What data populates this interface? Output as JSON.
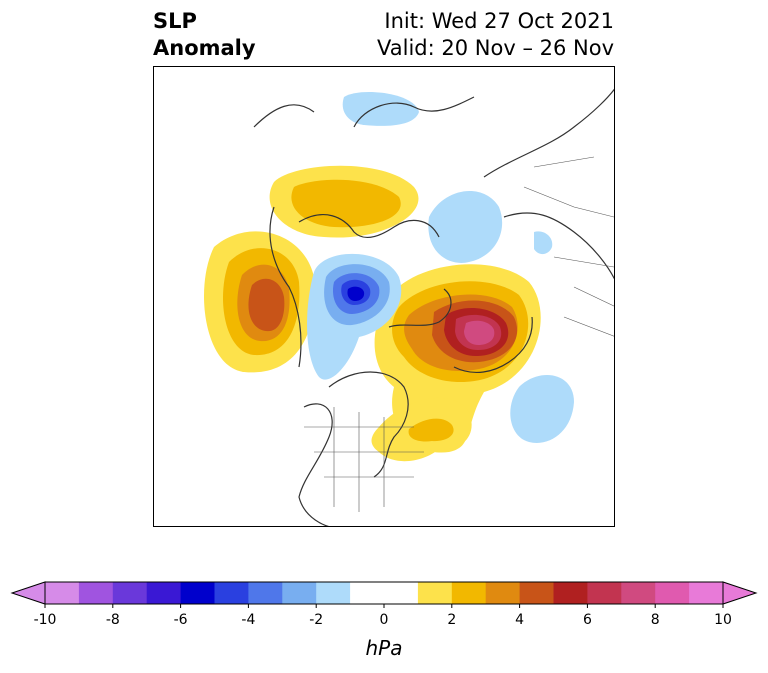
{
  "title": {
    "variable": "SLP",
    "subtitle": "Anomaly"
  },
  "dates": {
    "init": "Init: Wed 27 Oct 2021",
    "valid": "Valid: 20 Nov – 26 Nov"
  },
  "colorbar": {
    "unit_label": "hPa",
    "ticks": [
      "-10",
      "-8",
      "-6",
      "-4",
      "-2",
      "0",
      "2",
      "4",
      "6",
      "8",
      "10"
    ],
    "colors": [
      "#d68be8",
      "#a054e0",
      "#6a38da",
      "#3a18d4",
      "#0000cc",
      "#2a40e0",
      "#4f77ea",
      "#78aef0",
      "#aedbfa",
      "#ffffff",
      "#ffffff",
      "#fde24b",
      "#f2b800",
      "#e08a10",
      "#c85418",
      "#b02020",
      "#c23450",
      "#d04a80",
      "#e05aaf",
      "#e87ad8"
    ]
  }
}
